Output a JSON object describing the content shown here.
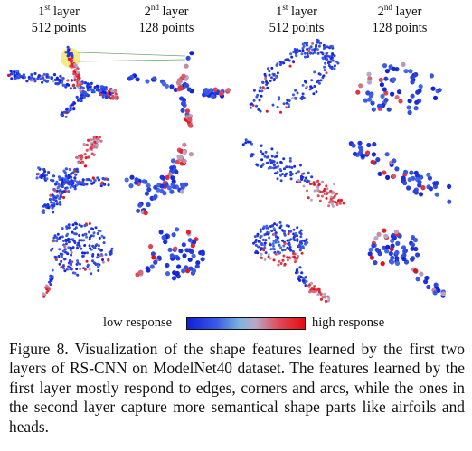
{
  "headers": [
    {
      "sup": "st",
      "line1a": "1",
      "line1b": " layer",
      "line2": "512 points"
    },
    {
      "sup": "nd",
      "line1a": "2",
      "line1b": " layer",
      "line2": "128 points"
    },
    {
      "sup": "st",
      "line1a": "1",
      "line1b": " layer",
      "line2": "512 points"
    },
    {
      "sup": "nd",
      "line1a": "2",
      "line1b": " layer",
      "line2": "128 points"
    }
  ],
  "legend": {
    "low": "low response",
    "high": "high response",
    "colors": {
      "low": "#1020d8",
      "mid": "#8fb8dc",
      "high": "#e40c14"
    }
  },
  "caption": "Figure 8. Visualization of the shape features learned by the first two layers of RS-CNN on ModelNet40 dataset.  The features learned by the first layer mostly respond to edges, corners and arcs, while the ones in the second layer capture more semantical shape parts like airfoils and heads."
}
